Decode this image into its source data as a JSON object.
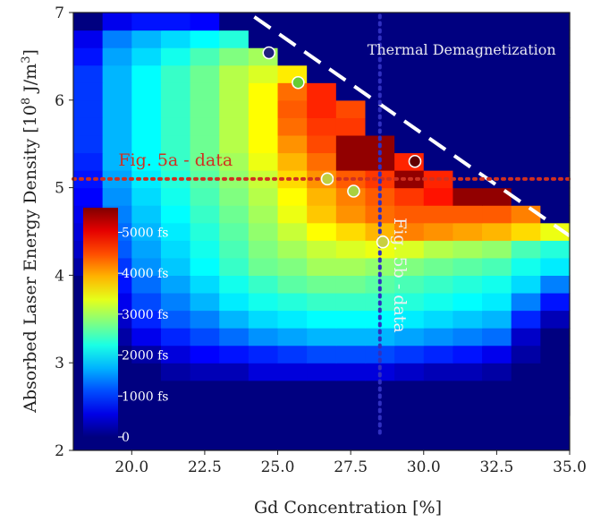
{
  "chart_data": {
    "type": "heatmap",
    "xlabel": "Gd Concentration [%]",
    "ylabel": "Absorbed Laser Energy Density [10",
    "ylabel_sup": "8",
    "ylabel_tail": " J/m",
    "ylabel_sup2": "3",
    "ylabel_close": "]",
    "xlim": [
      18,
      35
    ],
    "ylim": [
      2,
      7
    ],
    "xticks": [
      "20.0",
      "22.5",
      "25.0",
      "27.5",
      "30.0",
      "32.5",
      "35.0"
    ],
    "xtick_values": [
      20,
      22.5,
      25,
      27.5,
      30,
      32.5,
      35
    ],
    "yticks": [
      "2",
      "3",
      "4",
      "5",
      "6",
      "7"
    ],
    "ytick_values": [
      2,
      3,
      4,
      5,
      6,
      7
    ],
    "grid": false,
    "background_color": "#00007f",
    "colorbar": {
      "labels": [
        "0",
        "1000 fs",
        "2000 fs",
        "3000 fs",
        "4000 fs",
        "5000 fs"
      ],
      "label_values": [
        0,
        1000,
        2000,
        3000,
        4000,
        5000
      ],
      "range": [
        0,
        5600
      ],
      "colormap": "jet",
      "placement": "inset-left"
    },
    "grid_cells": {
      "x_edges": [
        18,
        19,
        20,
        21,
        22,
        23,
        24,
        25,
        26,
        27,
        28,
        29,
        30,
        31,
        32,
        33,
        34,
        35
      ],
      "y_edges": [
        2.4,
        2.6,
        2.8,
        3.0,
        3.2,
        3.4,
        3.6,
        3.8,
        4.0,
        4.2,
        4.4,
        4.6,
        4.8,
        5.0,
        5.2,
        5.4,
        5.6,
        5.8,
        6.0,
        6.2,
        6.4,
        6.6,
        6.8,
        7.0
      ],
      "values_fs": [
        [
          0,
          0,
          0,
          0,
          0,
          0,
          0,
          0,
          0,
          0,
          0,
          0,
          0,
          0,
          0,
          0,
          0
        ],
        [
          0,
          0,
          0,
          0,
          0,
          0,
          0,
          0,
          0,
          0,
          0,
          0,
          0,
          0,
          0,
          0,
          0
        ],
        [
          0,
          0,
          0,
          200,
          300,
          300,
          500,
          500,
          500,
          500,
          500,
          400,
          300,
          300,
          200,
          0,
          0
        ],
        [
          0,
          0,
          200,
          500,
          700,
          800,
          900,
          1000,
          1100,
          1100,
          1100,
          1000,
          900,
          800,
          600,
          200,
          0
        ],
        [
          0,
          200,
          600,
          900,
          1100,
          1300,
          1500,
          1600,
          1700,
          1700,
          1700,
          1600,
          1500,
          1400,
          1300,
          400,
          0
        ],
        [
          0,
          400,
          900,
          1200,
          1400,
          1700,
          1900,
          2000,
          2100,
          2100,
          2100,
          2000,
          1900,
          1800,
          1700,
          900,
          300
        ],
        [
          0,
          600,
          1100,
          1400,
          1700,
          2000,
          2200,
          2300,
          2400,
          2400,
          2400,
          2300,
          2200,
          2100,
          2000,
          1400,
          800
        ],
        [
          0,
          800,
          1300,
          1600,
          1900,
          2200,
          2400,
          2600,
          2700,
          2700,
          2600,
          2500,
          2400,
          2300,
          2200,
          1900,
          1400
        ],
        [
          200,
          1000,
          1500,
          1800,
          2100,
          2400,
          2700,
          2800,
          3000,
          3000,
          2900,
          2800,
          2700,
          2600,
          2500,
          2200,
          2000
        ],
        [
          400,
          1200,
          1600,
          1900,
          2200,
          2500,
          2800,
          3000,
          3200,
          3300,
          3400,
          3300,
          3100,
          3000,
          2900,
          2500,
          2300
        ],
        [
          500,
          1300,
          1700,
          2000,
          2300,
          2600,
          2900,
          3200,
          3500,
          3700,
          3900,
          4200,
          4100,
          4000,
          3900,
          3700,
          3400
        ],
        [
          600,
          1400,
          1800,
          2100,
          2400,
          2700,
          3000,
          3400,
          3800,
          4100,
          4300,
          4400,
          4400,
          4400,
          4400,
          4200,
          0
        ],
        [
          700,
          1500,
          1900,
          2200,
          2500,
          2800,
          3100,
          3500,
          3900,
          4200,
          4400,
          4600,
          4800,
          5500,
          5500,
          0,
          0
        ],
        [
          800,
          1600,
          2000,
          2300,
          2600,
          2900,
          3200,
          3700,
          4100,
          4400,
          4600,
          5500,
          4700,
          0,
          0,
          0,
          0
        ],
        [
          900,
          1700,
          2100,
          2400,
          2700,
          3000,
          3400,
          3900,
          4300,
          5500,
          5500,
          4700,
          0,
          0,
          0,
          0,
          0
        ],
        [
          1000,
          1700,
          2100,
          2400,
          2700,
          3100,
          3500,
          4100,
          4500,
          5500,
          5500,
          0,
          0,
          0,
          0,
          0,
          0
        ],
        [
          1000,
          1700,
          2100,
          2400,
          2700,
          3100,
          3500,
          4300,
          4600,
          4600,
          0,
          0,
          0,
          0,
          0,
          0,
          0
        ],
        [
          1000,
          1700,
          2100,
          2400,
          2700,
          3100,
          3500,
          4400,
          4700,
          4500,
          0,
          0,
          0,
          0,
          0,
          0,
          0
        ],
        [
          1000,
          1700,
          2100,
          2400,
          2700,
          3100,
          3500,
          4300,
          4700,
          0,
          0,
          0,
          0,
          0,
          0,
          0,
          0
        ],
        [
          1000,
          1700,
          2100,
          2400,
          2700,
          3100,
          3300,
          3600,
          0,
          0,
          0,
          0,
          0,
          0,
          0,
          0,
          0
        ],
        [
          800,
          1600,
          1900,
          2200,
          2500,
          2800,
          3000,
          0,
          0,
          0,
          0,
          0,
          0,
          0,
          0,
          0,
          0
        ],
        [
          600,
          1400,
          1700,
          1900,
          2100,
          2300,
          0,
          0,
          0,
          0,
          0,
          0,
          0,
          0,
          0,
          0,
          0
        ],
        [
          0,
          600,
          800,
          800,
          700,
          0,
          0,
          0,
          0,
          0,
          0,
          0,
          0,
          0,
          0,
          0,
          0
        ]
      ]
    },
    "annotations": [
      {
        "text": "Thermal Demagnetization",
        "x": 31.3,
        "y": 6.52,
        "color": "#e8e8f0"
      },
      {
        "text": "Fig. 5a - data",
        "x": 21.5,
        "y": 5.25,
        "color": "#d03020"
      },
      {
        "text": "Fig. 5b - data",
        "x": 29.0,
        "y": 4.0,
        "rotate": 90,
        "color": "#f0f0f0"
      }
    ],
    "lines": [
      {
        "name": "demagnetization-boundary",
        "style": "dashed",
        "color": "#ffffff",
        "points": [
          [
            24.2,
            6.95
          ],
          [
            35.0,
            4.45
          ]
        ]
      },
      {
        "name": "fig5a-cut",
        "style": "dotted",
        "color": "#d03020",
        "points": [
          [
            18,
            5.1
          ],
          [
            35,
            5.1
          ]
        ]
      },
      {
        "name": "fig5b-cut",
        "style": "dotted",
        "color": "#3030c0",
        "points": [
          [
            28.5,
            2.2
          ],
          [
            28.5,
            7.0
          ]
        ]
      }
    ],
    "markers": [
      {
        "x": 24.7,
        "y": 6.54,
        "color": "#202080"
      },
      {
        "x": 25.7,
        "y": 6.2,
        "color": "#66cc33"
      },
      {
        "x": 26.7,
        "y": 5.1,
        "color": "#c0d040"
      },
      {
        "x": 27.6,
        "y": 4.96,
        "color": "#a8d040"
      },
      {
        "x": 28.6,
        "y": 4.38,
        "color": "#c8d040"
      },
      {
        "x": 29.7,
        "y": 5.3,
        "color": "#600000"
      }
    ]
  }
}
